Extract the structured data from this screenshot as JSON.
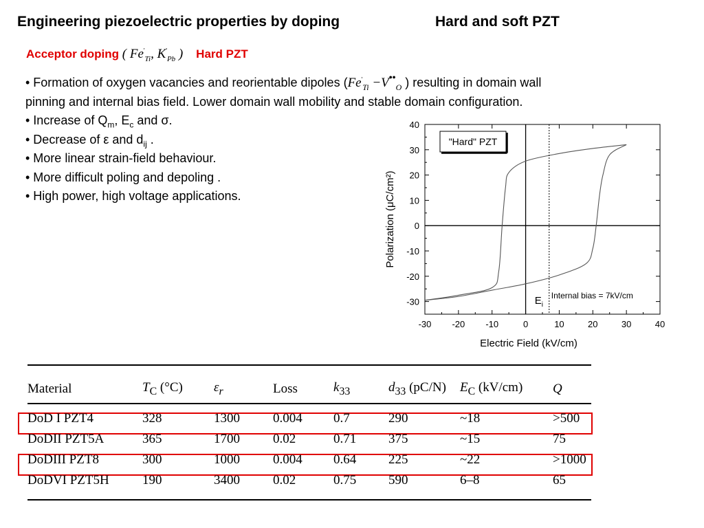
{
  "title": {
    "main": "Engineering piezoelectric properties by doping",
    "right": "Hard and soft PZT"
  },
  "subhead": {
    "label": "Acceptor doping",
    "formula_a": "Fe",
    "formula_a_sub": "Ti",
    "formula_b": "K",
    "formula_b_sub": "Pb",
    "hard_label": "Hard PZT"
  },
  "bullets": {
    "b1_pre": "• Formation of oxygen vacancies and reorientable dipoles (",
    "b1_math_v": "V",
    "b1_math_vsub": "O",
    "b1_post": ") resulting in domain wall",
    "b1_line2": "pinning  and internal bias field. Lower domain wall mobility and stable domain configuration.",
    "b2_pre": "• Increase of Q",
    "b2_sub1": "m",
    "b2_mid": ",  E",
    "b2_sub2": "c",
    "b2_post": " and σ.",
    "b3_pre": "• Decrease of ε and d",
    "b3_sub": "ij",
    "b3_post": " .",
    "b4": "• More linear strain-field behaviour.",
    "b5": "• More difficult poling and depoling .",
    "b6": "• High power, high voltage applications."
  },
  "chart_data": {
    "type": "line",
    "legend_box": "\"Hard\" PZT",
    "ylabel": "Polarization (μC/cm²)",
    "xlabel": "Electric Field (kV/cm)",
    "xlim": [
      -30,
      40
    ],
    "ylim": [
      -35,
      40
    ],
    "x_ticks": [
      -30,
      -20,
      -10,
      0,
      10,
      20,
      30,
      40
    ],
    "y_ticks": [
      -30,
      -20,
      -10,
      0,
      10,
      20,
      30,
      40
    ],
    "annotation_ei": "E",
    "annotation_ei_sub": "i",
    "annotation_text": "Internal bias = 7kV/cm",
    "internal_bias": 7,
    "series": [
      {
        "name": "",
        "x": [
          30,
          20,
          10,
          0,
          -5,
          -6,
          -7,
          -8,
          -10,
          -20,
          -30
        ],
        "y": [
          32,
          30.5,
          28.5,
          25.5,
          21,
          15,
          0,
          -18,
          -24.5,
          -27.5,
          -29.5
        ]
      },
      {
        "name": "",
        "x": [
          -30,
          -20,
          -10,
          0,
          10,
          18,
          20,
          21,
          22,
          23,
          25,
          30
        ],
        "y": [
          -29.5,
          -28,
          -25.5,
          -23,
          -19.5,
          -15,
          -9,
          0,
          12,
          20,
          28,
          32
        ]
      }
    ]
  },
  "table": {
    "headers": [
      {
        "main": "Material",
        "sub": ""
      },
      {
        "main": "T",
        "sub": "C",
        "rest": " (°C)"
      },
      {
        "main": "ε",
        "sub": "r",
        "rest": ""
      },
      {
        "main": "Loss",
        "sub": "",
        "rest": ""
      },
      {
        "main": "k",
        "sub": "33",
        "rest": ""
      },
      {
        "main": "d",
        "sub": "33",
        "rest": "  (pC/N)"
      },
      {
        "main": "E",
        "sub": "C",
        "rest": " (kV/cm)"
      },
      {
        "main": "Q",
        "sub": "",
        "rest": ""
      }
    ],
    "rows": [
      [
        "DoD I PZT4",
        "328",
        "1300",
        "0.004",
        "0.7",
        "290",
        "~18",
        ">500"
      ],
      [
        "DoDII PZT5A",
        "365",
        "1700",
        "0.02",
        "0.71",
        "375",
        "~15",
        "75"
      ],
      [
        "DoDIII PZT8",
        "300",
        "1000",
        "0.004",
        "0.64",
        "225",
        "~22",
        ">1000"
      ],
      [
        "DoDVI PZT5H",
        "190",
        "3400",
        "0.02",
        "0.75",
        "590",
        "6–8",
        "65"
      ]
    ],
    "highlighted_rows": [
      0,
      2
    ],
    "highlight_color": "#e00000"
  }
}
